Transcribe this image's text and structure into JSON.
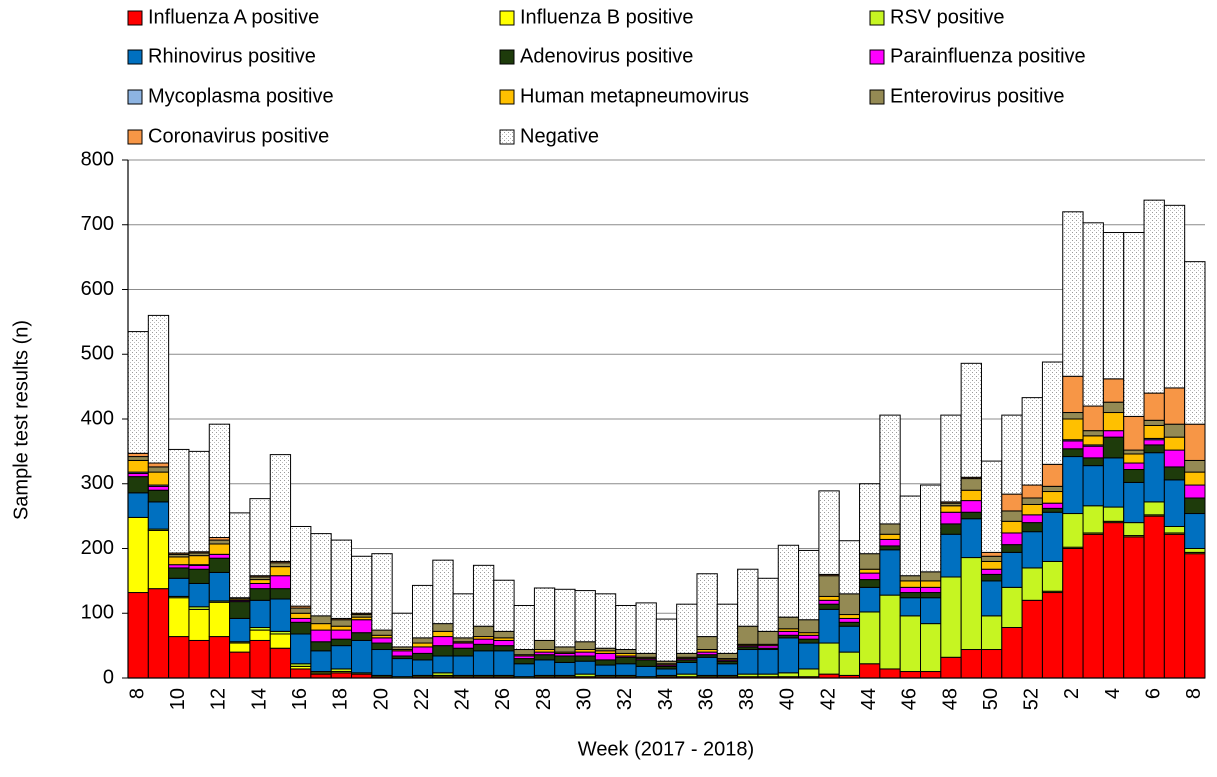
{
  "chart_data": {
    "type": "stacked_bar",
    "y_label": "Sample test results (n)",
    "x_label": "Week (2017 - 2018)",
    "categories": [
      "8",
      null,
      "10",
      null,
      "12",
      null,
      "14",
      null,
      "16",
      null,
      "18",
      null,
      "20",
      null,
      "22",
      null,
      "24",
      null,
      "26",
      null,
      "28",
      null,
      "30",
      null,
      "32",
      null,
      "34",
      null,
      "36",
      null,
      "38",
      null,
      "40",
      null,
      "42",
      null,
      "44",
      null,
      "46",
      null,
      "48",
      null,
      "50",
      null,
      "52",
      null,
      "2",
      null,
      "4",
      null,
      "6",
      null,
      "8"
    ],
    "ylim": [
      0,
      800
    ],
    "yticks": [
      0,
      100,
      200,
      300,
      400,
      500,
      600,
      700,
      800
    ],
    "grid": true,
    "legend": "top",
    "series": [
      {
        "name": "Influenza A positive",
        "color": "#ff0000",
        "values": [
          132,
          138,
          64,
          58,
          64,
          40,
          58,
          46,
          14,
          6,
          8,
          6,
          2,
          0,
          2,
          2,
          2,
          2,
          2,
          0,
          2,
          2,
          2,
          2,
          2,
          0,
          2,
          2,
          2,
          2,
          2,
          2,
          2,
          2,
          6,
          4,
          22,
          14,
          10,
          10,
          32,
          44,
          44,
          78,
          120,
          132,
          200,
          222,
          240,
          218,
          250,
          222,
          192
        ]
      },
      {
        "name": "Influenza B positive",
        "color": "#ffff00",
        "values": [
          116,
          90,
          60,
          48,
          53,
          14,
          16,
          22,
          4,
          2,
          2,
          0,
          0,
          0,
          0,
          2,
          0,
          0,
          0,
          0,
          0,
          0,
          0,
          0,
          0,
          0,
          0,
          0,
          0,
          0,
          0,
          0,
          0,
          0,
          0,
          0,
          0,
          0,
          0,
          0,
          0,
          0,
          0,
          0,
          0,
          2,
          2,
          2,
          2,
          2,
          2,
          2,
          2
        ]
      },
      {
        "name": "RSV positive",
        "color": "#c6f522",
        "values": [
          0,
          2,
          2,
          4,
          2,
          2,
          4,
          4,
          4,
          2,
          4,
          2,
          2,
          2,
          2,
          4,
          2,
          2,
          2,
          2,
          2,
          2,
          4,
          2,
          2,
          2,
          2,
          4,
          2,
          2,
          4,
          4,
          6,
          12,
          48,
          36,
          80,
          114,
          86,
          74,
          124,
          142,
          52,
          62,
          50,
          46,
          52,
          42,
          22,
          20,
          20,
          10,
          6
        ]
      },
      {
        "name": "Rhinovirus positive",
        "color": "#0070c0",
        "values": [
          38,
          42,
          28,
          36,
          44,
          36,
          42,
          50,
          46,
          32,
          36,
          50,
          40,
          28,
          24,
          26,
          30,
          38,
          38,
          20,
          24,
          20,
          20,
          16,
          18,
          16,
          10,
          18,
          28,
          18,
          38,
          38,
          54,
          40,
          52,
          40,
          38,
          70,
          28,
          40,
          66,
          60,
          54,
          54,
          56,
          76,
          88,
          62,
          76,
          62,
          76,
          72,
          54
        ]
      },
      {
        "name": "Adenovirus positive",
        "color": "#1e3b0b",
        "values": [
          25,
          18,
          16,
          22,
          22,
          26,
          18,
          16,
          18,
          14,
          10,
          12,
          10,
          4,
          10,
          16,
          12,
          10,
          8,
          8,
          8,
          10,
          8,
          8,
          10,
          10,
          4,
          4,
          4,
          4,
          4,
          2,
          4,
          6,
          8,
          6,
          12,
          6,
          8,
          8,
          16,
          10,
          10,
          12,
          14,
          6,
          12,
          12,
          32,
          20,
          12,
          20,
          24
        ]
      },
      {
        "name": "Parainfluenza positive",
        "color": "#ff00ff",
        "values": [
          5,
          6,
          5,
          6,
          6,
          2,
          8,
          20,
          6,
          18,
          14,
          20,
          8,
          8,
          10,
          14,
          8,
          8,
          8,
          4,
          4,
          4,
          6,
          10,
          2,
          2,
          2,
          2,
          4,
          2,
          2,
          4,
          6,
          6,
          6,
          6,
          10,
          10,
          8,
          8,
          18,
          18,
          8,
          18,
          12,
          8,
          12,
          18,
          10,
          10,
          8,
          26,
          20
        ]
      },
      {
        "name": "Mycoplasma positive",
        "color": "#8db4e2",
        "values": [
          2,
          2,
          0,
          1,
          0,
          0,
          0,
          0,
          0,
          0,
          0,
          0,
          0,
          0,
          0,
          0,
          0,
          0,
          0,
          0,
          0,
          0,
          0,
          0,
          0,
          0,
          0,
          0,
          0,
          0,
          0,
          0,
          0,
          0,
          0,
          0,
          0,
          0,
          0,
          0,
          0,
          0,
          0,
          0,
          0,
          0,
          2,
          2,
          0,
          0,
          2,
          0,
          0
        ]
      },
      {
        "name": "Human metapneumovirus",
        "color": "#ffc000",
        "values": [
          18,
          20,
          12,
          14,
          16,
          2,
          6,
          14,
          8,
          10,
          6,
          4,
          4,
          2,
          6,
          8,
          2,
          4,
          4,
          2,
          4,
          2,
          4,
          4,
          4,
          2,
          2,
          2,
          4,
          2,
          2,
          2,
          4,
          4,
          6,
          6,
          6,
          8,
          10,
          10,
          10,
          16,
          12,
          18,
          16,
          18,
          32,
          14,
          28,
          14,
          20,
          20,
          20
        ]
      },
      {
        "name": "Enterovirus positive",
        "color": "#948a54",
        "values": [
          6,
          8,
          4,
          4,
          6,
          2,
          4,
          6,
          8,
          12,
          10,
          4,
          8,
          4,
          8,
          12,
          6,
          16,
          10,
          8,
          14,
          8,
          12,
          4,
          6,
          6,
          4,
          6,
          20,
          8,
          28,
          20,
          18,
          20,
          32,
          32,
          24,
          16,
          8,
          14,
          4,
          18,
          8,
          16,
          10,
          8,
          10,
          8,
          16,
          6,
          8,
          20,
          18
        ]
      },
      {
        "name": "Coronavirus positive",
        "color": "#f79646",
        "values": [
          5,
          6,
          2,
          2,
          4,
          0,
          2,
          2,
          3,
          0,
          2,
          2,
          0,
          0,
          0,
          0,
          0,
          0,
          0,
          0,
          0,
          0,
          0,
          0,
          0,
          0,
          0,
          0,
          0,
          0,
          0,
          0,
          0,
          0,
          2,
          0,
          0,
          0,
          0,
          0,
          2,
          2,
          6,
          26,
          20,
          34,
          56,
          38,
          36,
          52,
          42,
          56,
          56
        ]
      },
      {
        "name": "Negative",
        "color": "#f2f2f2",
        "pattern": "dots",
        "values": [
          188,
          228,
          160,
          155,
          175,
          131,
          119,
          165,
          123,
          127,
          121,
          88,
          118,
          52,
          81,
          98,
          68,
          94,
          79,
          68,
          81,
          89,
          79,
          84,
          68,
          78,
          65,
          76,
          97,
          76,
          88,
          82,
          111,
          107,
          129,
          82,
          108,
          168,
          123,
          134,
          134,
          176,
          141,
          122,
          135,
          158,
          254,
          283,
          226,
          284,
          298,
          282,
          251
        ]
      }
    ]
  }
}
